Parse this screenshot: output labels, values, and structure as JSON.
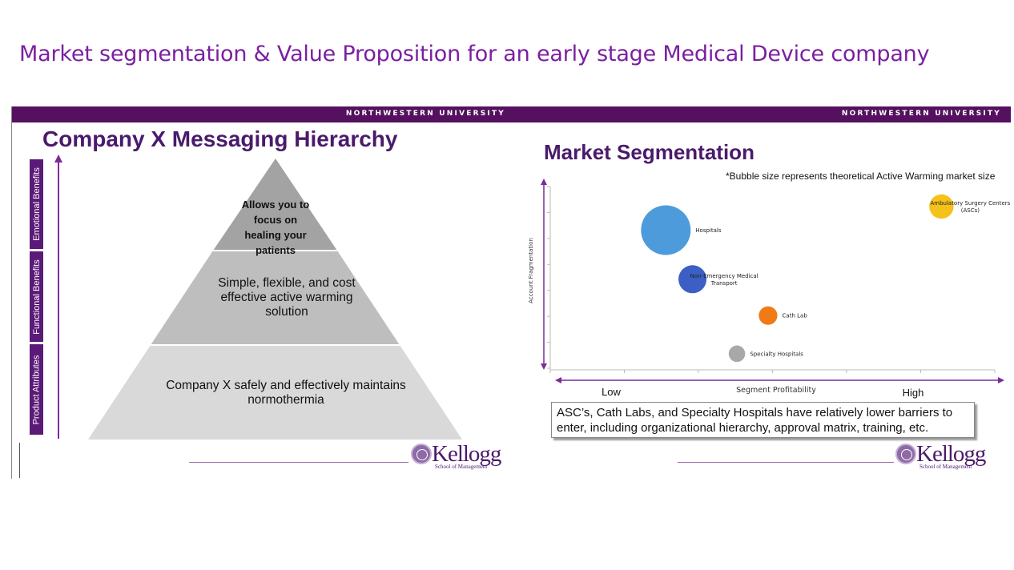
{
  "page": {
    "title": "Market segmentation & Value Proposition for an early stage Medical Device company"
  },
  "left_slide": {
    "banner": "NORTHWESTERN UNIVERSITY",
    "heading": "Company X Messaging Hierarchy",
    "side_labels": [
      "Emotional Benefits",
      "Functional Benefits",
      "Product Attributes"
    ],
    "pyramid": {
      "top": "Allows you to focus on healing your patients",
      "middle": "Simple, flexible, and cost effective active warming solution",
      "bottom": "Company X safely and effectively maintains normothermia"
    },
    "logo": {
      "word": "Kellogg",
      "sub": "School of Management"
    }
  },
  "right_slide": {
    "banner": "NORTHWESTERN UNIVERSITY",
    "heading": "Market Segmentation",
    "note": "*Bubble size represents theoretical Active Warming market size",
    "callout": "ASC’s, Cath Labs, and Specialty Hospitals have relatively lower barriers to enter, including organizational hierarchy, approval matrix, training, etc.",
    "logo": {
      "word": "Kellogg",
      "sub": "School of Management"
    }
  },
  "chart_data": {
    "type": "scatter",
    "title": "Market Segmentation",
    "subtitle": "*Bubble size represents theoretical Active Warming market size",
    "xlabel": "Segment Profitability",
    "ylabel": "Account Fragmentation",
    "x_tick_labels": [
      "Low",
      "High"
    ],
    "xlim": [
      0,
      10
    ],
    "ylim": [
      0,
      10
    ],
    "grid": false,
    "series": [
      {
        "name": "Hospitals",
        "x": 2.6,
        "y": 7.6,
        "size": 10,
        "color": "#4e9bdc"
      },
      {
        "name": "Non-Emergency Medical Transport",
        "x": 3.2,
        "y": 4.9,
        "size": 3.2,
        "color": "#3b5fc4"
      },
      {
        "name": "Cath Lab",
        "x": 4.9,
        "y": 2.9,
        "size": 1.4,
        "color": "#f07b16"
      },
      {
        "name": "Specialty Hospitals",
        "x": 4.2,
        "y": 0.8,
        "size": 1.1,
        "color": "#a8a8a8"
      },
      {
        "name": "Ambulatory Surgery Centers (ASCs)",
        "x": 8.8,
        "y": 8.9,
        "size": 2.4,
        "color": "#f5c11b"
      }
    ]
  }
}
